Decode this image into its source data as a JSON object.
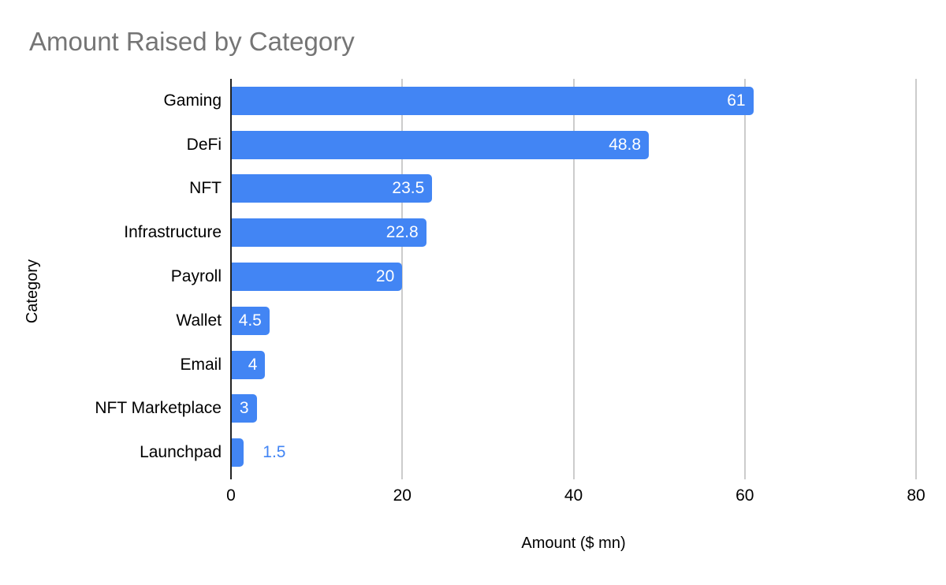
{
  "chart_data": {
    "type": "bar",
    "orientation": "horizontal",
    "title": "Amount Raised by Category",
    "xlabel": "Amount ($ mn)",
    "ylabel": "Category",
    "categories": [
      "Gaming",
      "DeFi",
      "NFT",
      "Infrastructure",
      "Payroll",
      "Wallet",
      "Email",
      "NFT Marketplace",
      "Launchpad"
    ],
    "values": [
      61,
      48.8,
      23.5,
      22.8,
      20,
      4.5,
      4,
      3,
      1.5
    ],
    "value_labels": [
      "61",
      "48.8",
      "23.5",
      "22.8",
      "20",
      "4.5",
      "4",
      "3",
      "1.5"
    ],
    "xlim": [
      0,
      80
    ],
    "xticks": [
      0,
      20,
      40,
      60,
      80
    ],
    "xtick_labels": [
      "0",
      "20",
      "40",
      "60",
      "80"
    ],
    "grid": "vertical",
    "legend": "none",
    "colors": {
      "bar": "#4285f4",
      "value_label_inside": "#ffffff",
      "value_label_outside": "#4285f4",
      "title": "#757575",
      "axis_line": "#222222",
      "gridline": "#cccccc",
      "text": "#000000"
    }
  }
}
